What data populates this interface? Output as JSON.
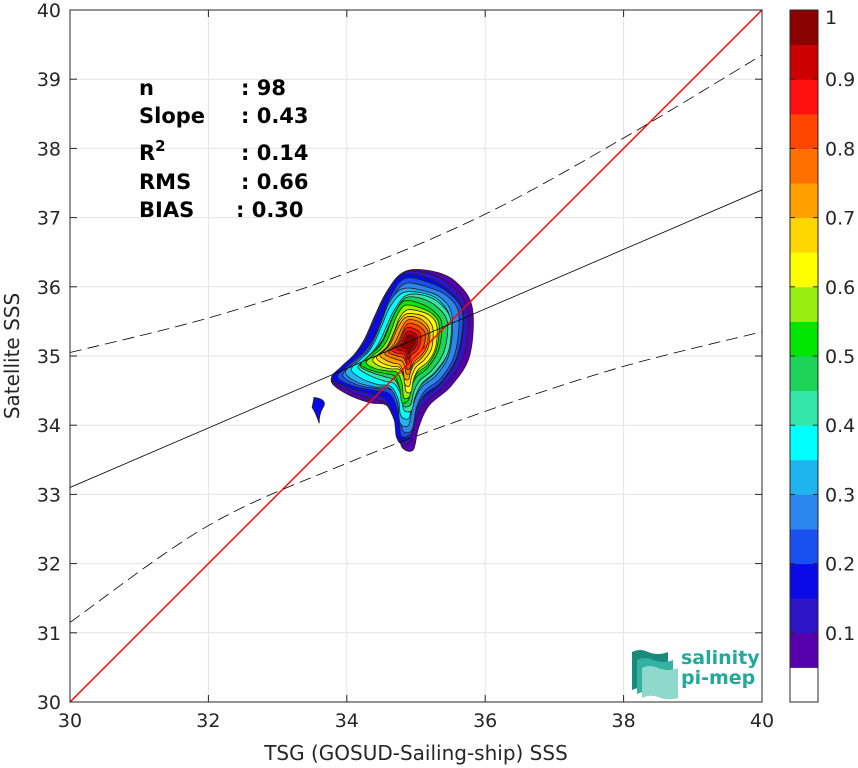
{
  "chart_data": {
    "type": "heatmap",
    "subtype": "density-contour scatter comparison",
    "xlabel": "TSG (GOSUD-Sailing-ship) SSS",
    "ylabel": "Satellite SSS",
    "xlim": [
      30,
      40
    ],
    "ylim": [
      30,
      40
    ],
    "xticks": [
      "30",
      "32",
      "34",
      "36",
      "38",
      "40"
    ],
    "yticks": [
      "30",
      "31",
      "32",
      "33",
      "34",
      "35",
      "36",
      "37",
      "38",
      "39",
      "40"
    ],
    "grid": true,
    "stats": [
      {
        "label": "n",
        "value": ": 98"
      },
      {
        "label": "Slope",
        "value": ": 0.43"
      },
      {
        "label": "R",
        "sup": "2",
        "value": ": 0.14"
      },
      {
        "label": "RMS",
        "value": ": 0.66"
      },
      {
        "label": "BIAS",
        "value": ": 0.30"
      }
    ],
    "lines": {
      "identity": {
        "color": "#ff0000",
        "from": [
          30,
          30
        ],
        "to": [
          40,
          40
        ]
      },
      "regression": {
        "slope": 0.43,
        "intercept": 20.2,
        "color": "#000000"
      },
      "confidence_upper": {
        "x": [
          30,
          32,
          34,
          36,
          38,
          40
        ],
        "y": [
          35.05,
          35.55,
          36.2,
          37.05,
          38.15,
          39.35
        ]
      },
      "confidence_lower": {
        "x": [
          30,
          32,
          34,
          36,
          38,
          40
        ],
        "y": [
          31.15,
          32.55,
          33.45,
          34.2,
          34.85,
          35.35
        ]
      }
    },
    "density_peak": {
      "x": 34.9,
      "y": 35.2
    },
    "colorbar": {
      "range": [
        0,
        1
      ],
      "ticks": [
        "0.1",
        "0.2",
        "0.3",
        "0.4",
        "0.5",
        "0.6",
        "0.7",
        "0.8",
        "0.9",
        "1"
      ],
      "colors": [
        "#ffffff",
        "#5500aa",
        "#2e14c6",
        "#0a0ae6",
        "#1a50f0",
        "#2c86ee",
        "#1fb4ee",
        "#00ffff",
        "#33e6aa",
        "#1ed25a",
        "#00e600",
        "#99ee11",
        "#ffff00",
        "#ffd700",
        "#ff9f00",
        "#ff7000",
        "#ff4500",
        "#ff1010",
        "#cc0000",
        "#8b0000"
      ]
    }
  },
  "logo": {
    "line1": "salinity",
    "line2": "pi-mep"
  }
}
